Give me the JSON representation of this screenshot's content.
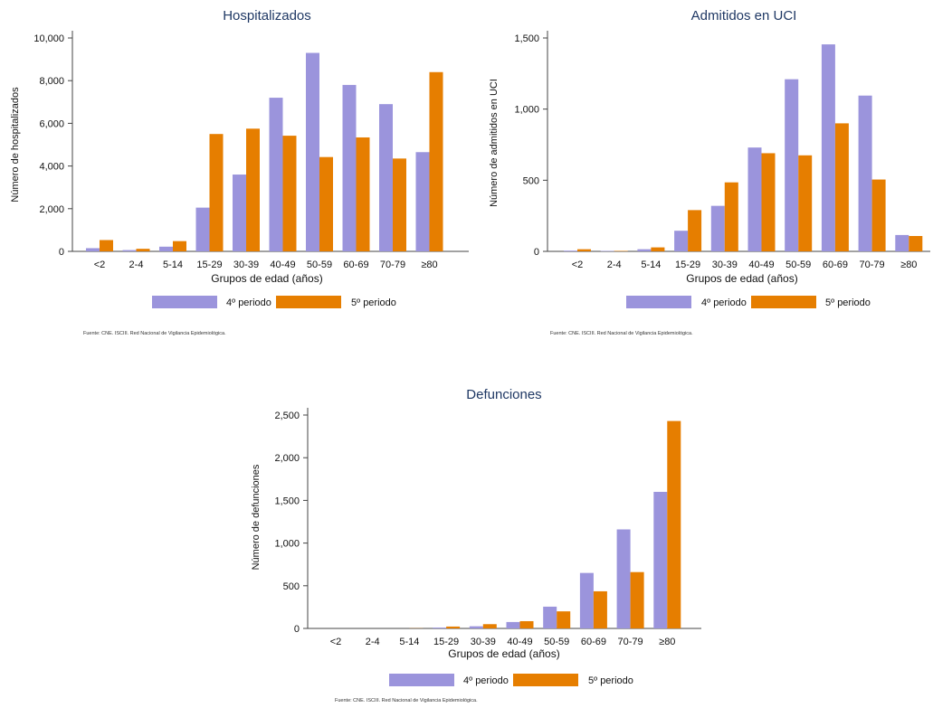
{
  "colors": {
    "series_a": "#9b94dc",
    "series_b": "#e67e00"
  },
  "chart_data": [
    {
      "type": "bar",
      "title": "Hospitalizados",
      "xlabel": "Grupos de edad (años)",
      "ylabel": "Número de hospitalizados",
      "categories": [
        "<2",
        "2-4",
        "5-14",
        "15-29",
        "30-39",
        "40-49",
        "50-59",
        "60-69",
        "70-79",
        "≥80"
      ],
      "series": [
        {
          "name": "4º periodo",
          "values": [
            150,
            60,
            220,
            2050,
            3600,
            7200,
            9300,
            7800,
            6900,
            4650
          ]
        },
        {
          "name": "5º periodo",
          "values": [
            530,
            120,
            480,
            5500,
            5750,
            5420,
            4420,
            5340,
            4350,
            8400
          ]
        }
      ],
      "ylim": [
        0,
        10000
      ],
      "yticks": [
        0,
        2000,
        4000,
        6000,
        8000,
        10000
      ],
      "ytick_labels": [
        "0",
        "2,000",
        "4,000",
        "6,000",
        "8,000",
        "10,000"
      ],
      "legend_position": "bottom",
      "source": "Fuente: CNE. ISCIII. Red Nacional de Vigilancia Epidemiológica."
    },
    {
      "type": "bar",
      "title": "Admitidos en UCI",
      "xlabel": "Grupos de edad (años)",
      "ylabel": "Número de admitidos en UCI",
      "categories": [
        "<2",
        "2-4",
        "5-14",
        "15-29",
        "30-39",
        "40-49",
        "50-59",
        "60-69",
        "70-79",
        "≥80"
      ],
      "series": [
        {
          "name": "4º periodo",
          "values": [
            5,
            3,
            15,
            145,
            320,
            730,
            1210,
            1455,
            1095,
            115
          ]
        },
        {
          "name": "5º periodo",
          "values": [
            15,
            3,
            28,
            290,
            485,
            690,
            675,
            900,
            505,
            108
          ]
        }
      ],
      "ylim": [
        0,
        1500
      ],
      "yticks": [
        0,
        500,
        1000,
        1500
      ],
      "ytick_labels": [
        "0",
        "500",
        "1,000",
        "1,500"
      ],
      "legend_position": "bottom",
      "source": "Fuente: CNE. ISCIII. Red Nacional de Vigilancia Epidemiológica."
    },
    {
      "type": "bar",
      "title": "Defunciones",
      "xlabel": "Grupos de edad (años)",
      "ylabel": "Número de defunciones",
      "categories": [
        "<2",
        "2-4",
        "5-14",
        "15-29",
        "30-39",
        "40-49",
        "50-59",
        "60-69",
        "70-79",
        "≥80"
      ],
      "series": [
        {
          "name": "4º periodo",
          "values": [
            0,
            0,
            0,
            10,
            25,
            75,
            255,
            650,
            1160,
            1600
          ]
        },
        {
          "name": "5º periodo",
          "values": [
            0,
            0,
            2,
            22,
            50,
            85,
            200,
            435,
            660,
            2430
          ]
        }
      ],
      "ylim": [
        0,
        2500
      ],
      "yticks": [
        0,
        500,
        1000,
        1500,
        2000,
        2500
      ],
      "ytick_labels": [
        "0",
        "500",
        "1,000",
        "1,500",
        "2,000",
        "2,500"
      ],
      "legend_position": "bottom",
      "source": "Fuente: CNE. ISCIII. Red Nacional de Vigilancia Epidemiológica."
    }
  ]
}
